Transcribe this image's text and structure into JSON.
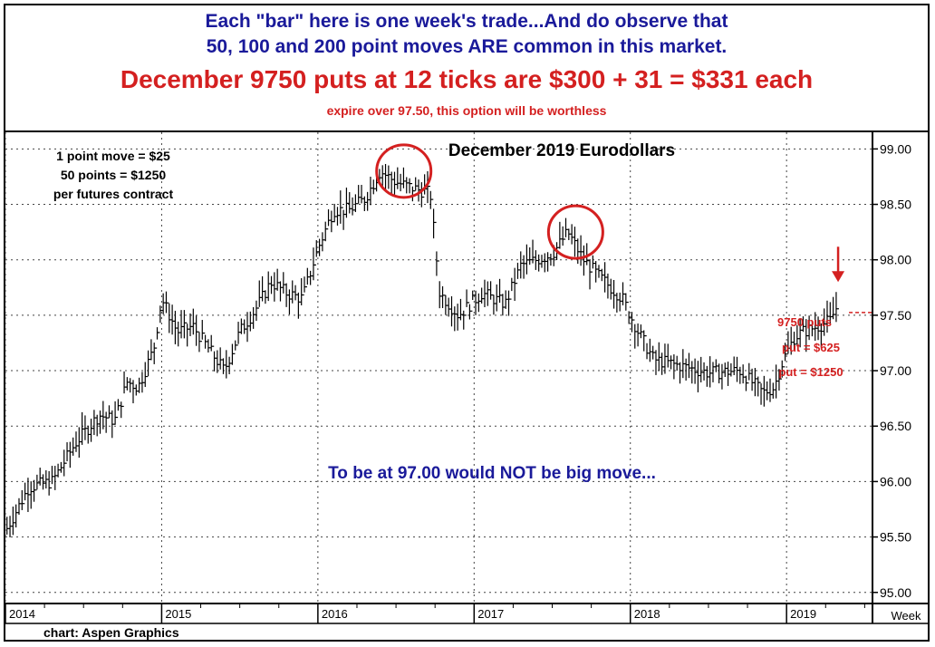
{
  "header": {
    "line1": "Each \"bar\" here is one week's trade...And do observe that",
    "line2": "50, 100 and 200 point moves ARE common in this market.",
    "line3": "December 9750 puts at 12 ticks are $300 + 31 = $331 each",
    "line4": "expire over 97.50, this option will be worthless"
  },
  "notes": {
    "n1": "1 point move = $25",
    "n2": "50 points = $1250",
    "n3": "per futures contract",
    "move_note": "To be at 97.00 would NOT be big move...",
    "credit": "chart: Aspen Graphics",
    "put1": "9750 puts",
    "put2": "put = $625",
    "put3": "put = $1250"
  },
  "colors": {
    "blue": "#1a1a9a",
    "red": "#d42020",
    "bars": "#000000"
  },
  "chart_data": {
    "type": "bar",
    "title": "December 2019 Eurodollars",
    "interval_label": "Week",
    "ylim": [
      94.9,
      99.15
    ],
    "y_ticks": [
      95.0,
      95.5,
      96.0,
      96.5,
      97.0,
      97.5,
      98.0,
      98.5,
      99.0
    ],
    "y_tick_labels": [
      "95.00",
      "95.50",
      "96.00",
      "96.50",
      "97.00",
      "97.50",
      "98.00",
      "98.50",
      "99.00"
    ],
    "x_labels": [
      "2014",
      "2015",
      "2016",
      "2017",
      "2018",
      "2019"
    ],
    "xlim": [
      2014.0,
      2019.55
    ],
    "grid": true,
    "price_path": [
      [
        2014.0,
        95.55
      ],
      [
        2014.15,
        95.95
      ],
      [
        2014.3,
        96.0
      ],
      [
        2014.45,
        96.35
      ],
      [
        2014.6,
        96.6
      ],
      [
        2014.7,
        96.55
      ],
      [
        2014.78,
        96.9
      ],
      [
        2014.85,
        96.85
      ],
      [
        2014.95,
        97.2
      ],
      [
        2015.0,
        97.65
      ],
      [
        2015.1,
        97.35
      ],
      [
        2015.2,
        97.4
      ],
      [
        2015.3,
        97.2
      ],
      [
        2015.4,
        97.0
      ],
      [
        2015.5,
        97.35
      ],
      [
        2015.6,
        97.55
      ],
      [
        2015.7,
        97.8
      ],
      [
        2015.8,
        97.7
      ],
      [
        2015.9,
        97.65
      ],
      [
        2016.0,
        98.1
      ],
      [
        2016.1,
        98.45
      ],
      [
        2016.2,
        98.45
      ],
      [
        2016.3,
        98.55
      ],
      [
        2016.4,
        98.8
      ],
      [
        2016.5,
        98.7
      ],
      [
        2016.6,
        98.65
      ],
      [
        2016.72,
        98.6
      ],
      [
        2016.78,
        97.7
      ],
      [
        2016.9,
        97.5
      ],
      [
        2017.05,
        97.7
      ],
      [
        2017.2,
        97.6
      ],
      [
        2017.3,
        97.95
      ],
      [
        2017.5,
        98.05
      ],
      [
        2017.6,
        98.25
      ],
      [
        2017.7,
        98.0
      ],
      [
        2017.8,
        97.85
      ],
      [
        2017.95,
        97.65
      ],
      [
        2018.05,
        97.35
      ],
      [
        2018.15,
        97.1
      ],
      [
        2018.3,
        97.05
      ],
      [
        2018.5,
        96.98
      ],
      [
        2018.7,
        97.0
      ],
      [
        2018.85,
        96.8
      ],
      [
        2018.92,
        96.85
      ],
      [
        2018.98,
        97.1
      ],
      [
        2019.05,
        97.3
      ],
      [
        2019.1,
        97.35
      ],
      [
        2019.2,
        97.4
      ],
      [
        2019.28,
        97.45
      ],
      [
        2019.33,
        97.6
      ]
    ],
    "circles": [
      [
        2016.55,
        98.8
      ],
      [
        2017.65,
        98.25
      ]
    ],
    "marker": [
      2019.33,
      97.75
    ],
    "put_levels": [
      97.5,
      97.25,
      97.0
    ]
  }
}
